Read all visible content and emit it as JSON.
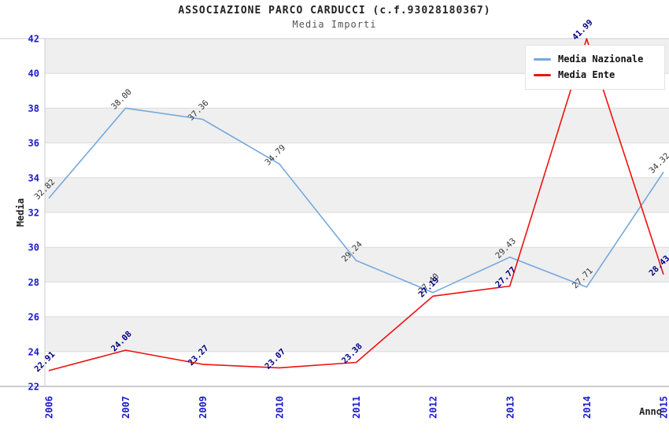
{
  "header": {
    "title": "ASSOCIAZIONE PARCO CARDUCCI (c.f.93028180367)",
    "subtitle": "Media Importi"
  },
  "legend": {
    "items": [
      {
        "label": "Media Nazionale",
        "color": "#74A9DE"
      },
      {
        "label": "Media Ente",
        "color": "#EE1111"
      }
    ]
  },
  "colors": {
    "tick_label": "#1a1acc",
    "axis_title": "#222222",
    "band_gray": "#efefef",
    "gridline": "#dcdcdc",
    "axis_line": "#999999",
    "spine": "#cccccc"
  },
  "chart_data": {
    "type": "line",
    "title": "ASSOCIAZIONE PARCO CARDUCCI (c.f.93028180367)",
    "subtitle": "Media Importi",
    "x": [
      "2006",
      "2007",
      "2009",
      "2010",
      "2011",
      "2012",
      "2013",
      "2014",
      "2015"
    ],
    "series": [
      {
        "name": "Media Nazionale",
        "color": "#74A9DE",
        "label_color": "#333333",
        "label_weight": "normal",
        "values": [
          32.82,
          38.0,
          37.36,
          34.79,
          29.24,
          27.4,
          29.43,
          27.71,
          34.32
        ]
      },
      {
        "name": "Media Ente",
        "color": "#EE1111",
        "label_color": "#000080",
        "label_weight": "bold",
        "values": [
          22.91,
          24.08,
          23.27,
          23.07,
          23.38,
          27.19,
          27.77,
          41.99,
          28.43
        ]
      }
    ],
    "xlabel": "Anno",
    "ylabel": "Media",
    "ylim": [
      22,
      42
    ],
    "ytick_step": 2,
    "grid": "horizontal-bands-alternating",
    "legend_position": "top-right",
    "point_label_format": "2-decimals",
    "point_label_rotation": -45
  }
}
